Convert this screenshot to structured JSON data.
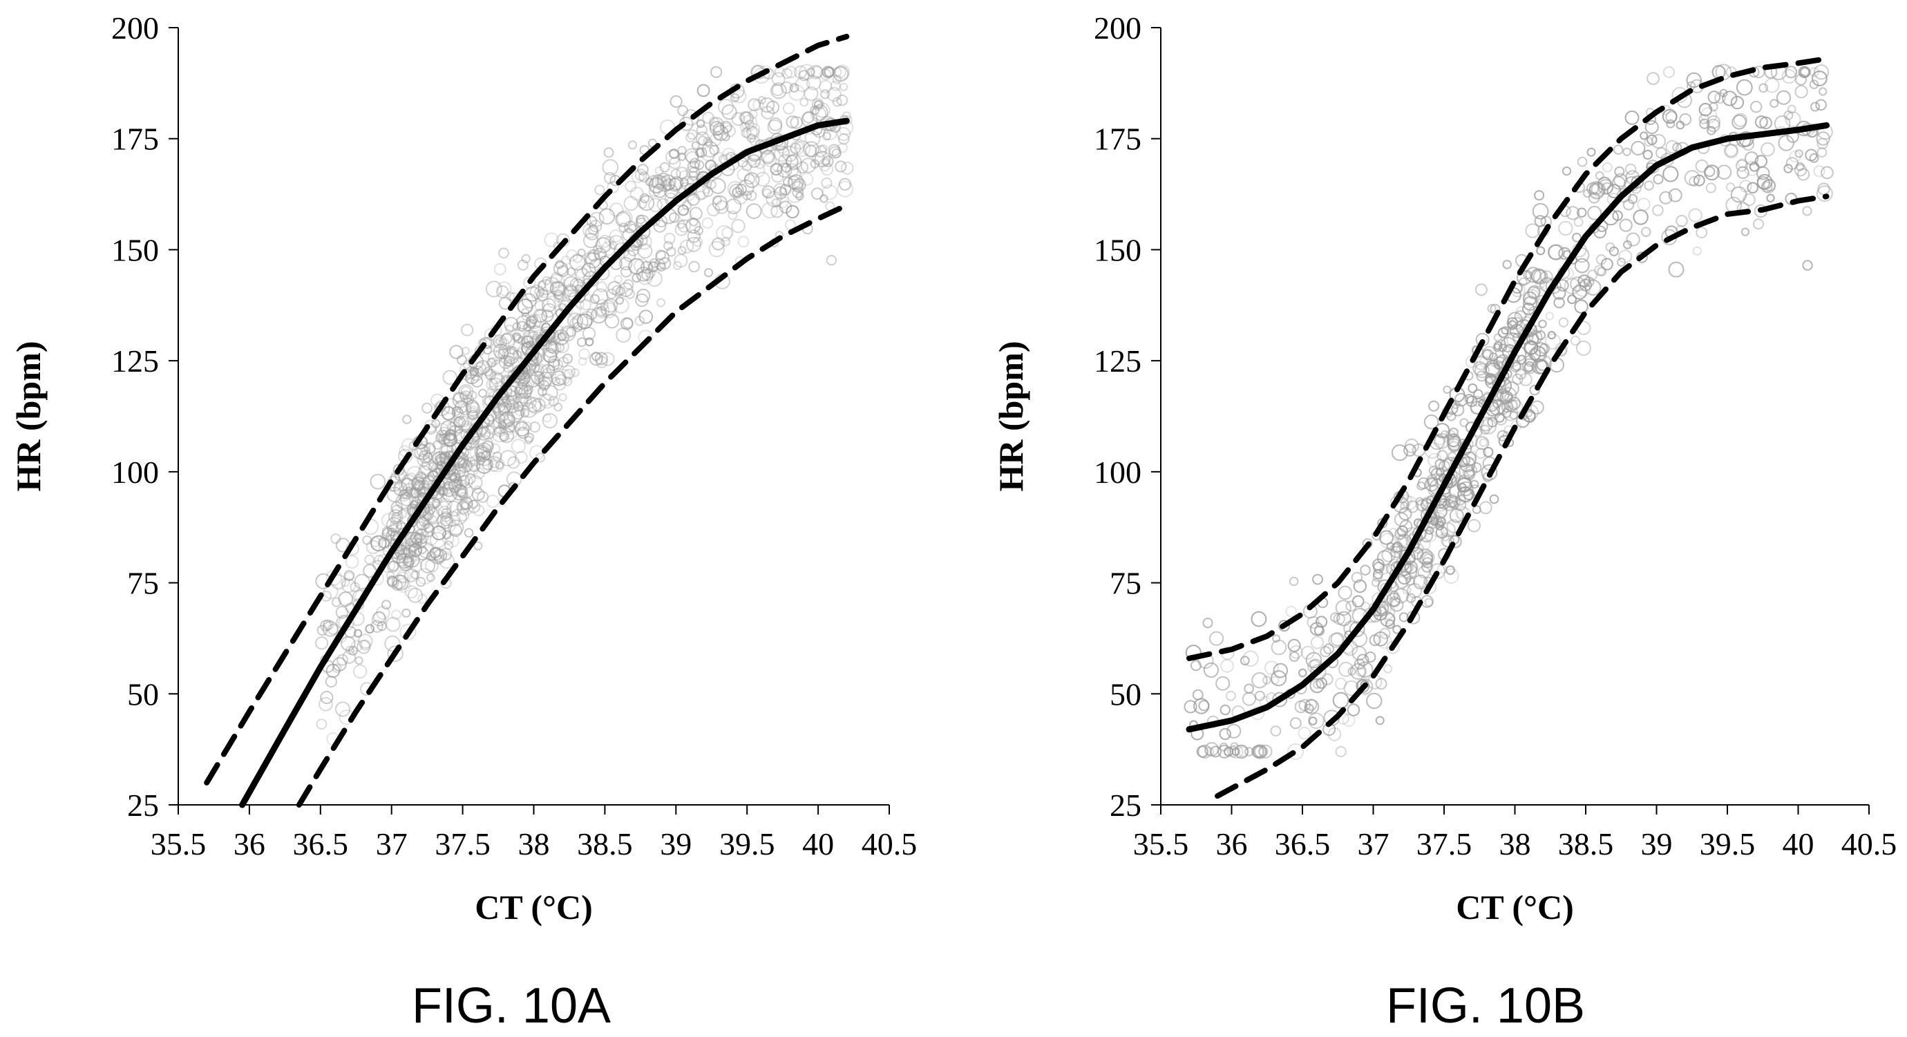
{
  "chart_data": [
    {
      "type": "scatter",
      "caption": "FIG. 10A",
      "xlabel": "CT (°C)",
      "ylabel": "HR (bpm)",
      "xlim": [
        35.5,
        40.5
      ],
      "ylim": [
        25,
        200
      ],
      "xticks": [
        "35.5",
        "36",
        "36.5",
        "37",
        "37.5",
        "38",
        "38.5",
        "39",
        "39.5",
        "40",
        "40.5"
      ],
      "yticks": [
        "25",
        "50",
        "75",
        "100",
        "125",
        "150",
        "175",
        "200"
      ],
      "grid": false,
      "legend": "none",
      "point_color": "#9a9a9a",
      "series": [
        {
          "style": "solid",
          "x": [
            35.95,
            36.25,
            36.5,
            36.75,
            37.0,
            37.25,
            37.5,
            37.75,
            38.0,
            38.25,
            38.5,
            38.75,
            39.0,
            39.25,
            39.5,
            39.75,
            40.0,
            40.2
          ],
          "y": [
            25,
            42,
            56,
            69,
            82,
            94,
            106,
            117,
            127,
            137,
            146,
            154,
            161,
            167,
            172,
            175,
            178,
            179
          ]
        },
        {
          "style": "dashed",
          "x": [
            35.7,
            36.0,
            36.25,
            36.5,
            36.75,
            37.0,
            37.25,
            37.5,
            37.75,
            38.0,
            38.25,
            38.5,
            38.75,
            39.0,
            39.25,
            39.5,
            39.75,
            40.0,
            40.2
          ],
          "y": [
            30,
            46,
            59,
            72,
            85,
            98,
            110,
            122,
            133,
            144,
            153,
            162,
            170,
            177,
            183,
            188,
            192,
            196,
            198
          ]
        },
        {
          "style": "dashed",
          "x": [
            36.35,
            36.5,
            36.75,
            37.0,
            37.25,
            37.5,
            37.75,
            38.0,
            38.25,
            38.5,
            38.75,
            39.0,
            39.25,
            39.5,
            39.75,
            40.0,
            40.2
          ],
          "y": [
            25,
            33,
            46,
            58,
            70,
            81,
            92,
            102,
            111,
            120,
            128,
            136,
            142,
            148,
            153,
            157,
            160
          ]
        }
      ]
    },
    {
      "type": "scatter",
      "caption": "FIG. 10B",
      "xlabel": "CT (°C)",
      "ylabel": "HR (bpm)",
      "xlim": [
        35.5,
        40.5
      ],
      "ylim": [
        25,
        200
      ],
      "xticks": [
        "35.5",
        "36",
        "36.5",
        "37",
        "37.5",
        "38",
        "38.5",
        "39",
        "39.5",
        "40",
        "40.5"
      ],
      "yticks": [
        "25",
        "50",
        "75",
        "100",
        "125",
        "150",
        "175",
        "200"
      ],
      "grid": false,
      "legend": "none",
      "point_color": "#9a9a9a",
      "series": [
        {
          "style": "solid",
          "x": [
            35.7,
            36.0,
            36.25,
            36.5,
            36.75,
            37.0,
            37.25,
            37.5,
            37.75,
            38.0,
            38.25,
            38.5,
            38.75,
            39.0,
            39.25,
            39.5,
            39.75,
            40.0,
            40.2
          ],
          "y": [
            42,
            44,
            47,
            52,
            59,
            69,
            82,
            97,
            112,
            127,
            141,
            153,
            162,
            169,
            173,
            175,
            176,
            177,
            178
          ]
        },
        {
          "style": "dashed",
          "x": [
            35.7,
            36.0,
            36.25,
            36.5,
            36.75,
            37.0,
            37.25,
            37.5,
            37.75,
            38.0,
            38.25,
            38.5,
            38.75,
            39.0,
            39.25,
            39.5,
            39.75,
            40.0,
            40.2
          ],
          "y": [
            58,
            60,
            63,
            68,
            75,
            85,
            98,
            113,
            128,
            143,
            156,
            167,
            175,
            181,
            186,
            189,
            191,
            192,
            193
          ]
        },
        {
          "style": "dashed",
          "x": [
            35.9,
            36.25,
            36.5,
            36.75,
            37.0,
            37.25,
            37.5,
            37.75,
            38.0,
            38.25,
            38.5,
            38.75,
            39.0,
            39.25,
            39.5,
            39.75,
            40.0,
            40.2
          ],
          "y": [
            27,
            33,
            38,
            45,
            54,
            66,
            80,
            95,
            110,
            124,
            136,
            145,
            151,
            155,
            158,
            159,
            161,
            162
          ]
        }
      ]
    }
  ]
}
